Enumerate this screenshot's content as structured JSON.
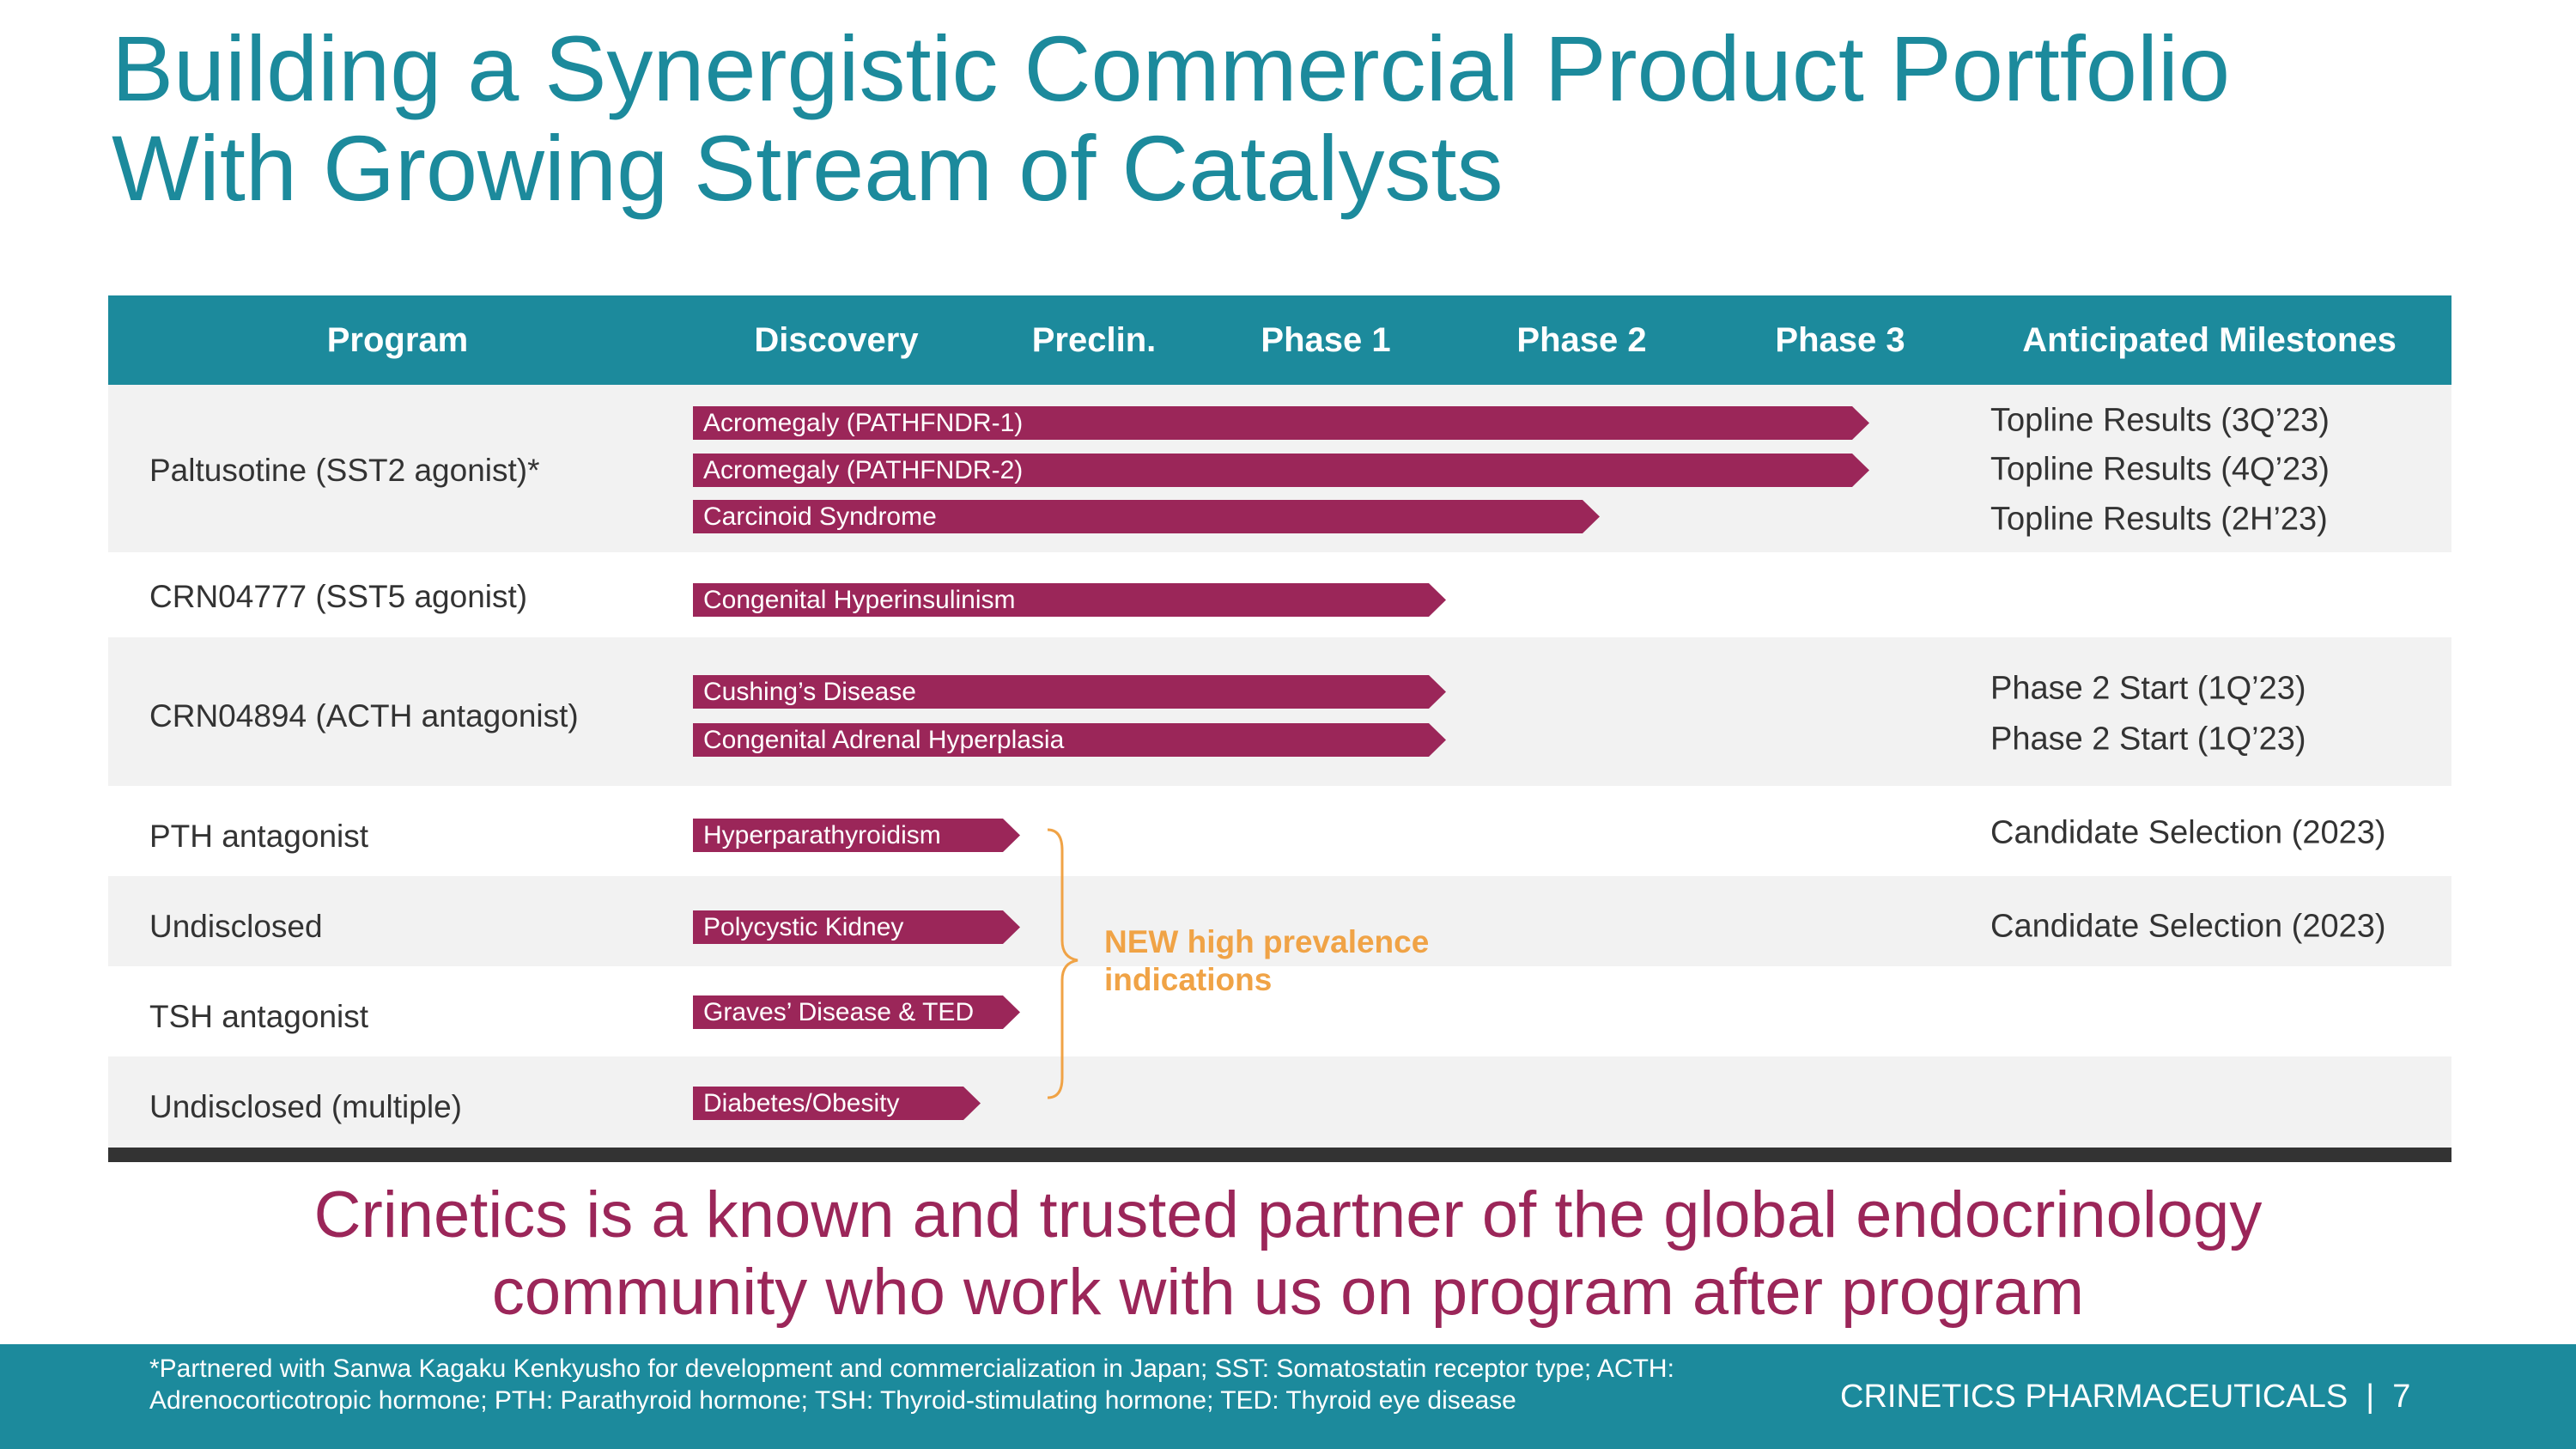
{
  "title": {
    "line1": "Building a Synergistic Commercial Product Portfolio",
    "line2": "With Growing Stream of Catalysts"
  },
  "header": {
    "program": "Program",
    "discovery": "Discovery",
    "preclin": "Preclin.",
    "phase1": "Phase 1",
    "phase2": "Phase 2",
    "phase3": "Phase 3",
    "milestones": "Anticipated Milestones"
  },
  "programs": [
    "Paltusotine (SST2 agonist)*",
    "CRN04777 (SST5 agonist)",
    "CRN04894 (ACTH antagonist)",
    "PTH antagonist",
    "Undisclosed",
    "TSH antagonist",
    "Undisclosed (multiple)"
  ],
  "indications": [
    {
      "label": "Acromegaly (PATHFNDR-1)",
      "stage": "Phase 3"
    },
    {
      "label": "Acromegaly (PATHFNDR-2)",
      "stage": "Phase 3"
    },
    {
      "label": "Carcinoid Syndrome",
      "stage": "Phase 2"
    },
    {
      "label": "Congenital Hyperinsulinism",
      "stage": "Phase 1"
    },
    {
      "label": "Cushing’s Disease",
      "stage": "Phase 1"
    },
    {
      "label": "Congenital Adrenal Hyperplasia",
      "stage": "Phase 1"
    },
    {
      "label": "Hyperparathyroidism",
      "stage": "Discovery"
    },
    {
      "label": "Polycystic Kidney",
      "stage": "Discovery"
    },
    {
      "label": "Graves’ Disease & TED",
      "stage": "Discovery"
    },
    {
      "label": "Diabetes/Obesity",
      "stage": "Discovery"
    }
  ],
  "milestones": [
    "Topline Results (3Q’23)",
    "Topline Results (4Q’23)",
    "Topline Results (2H’23)",
    "Phase 2 Start (1Q’23)",
    "Phase 2 Start (1Q’23)",
    "Candidate Selection (2023)",
    "Candidate Selection (2023)"
  ],
  "new_indications": {
    "line1": "NEW high prevalence",
    "line2": "indications"
  },
  "tagline": {
    "line1": "Crinetics is a known and trusted partner of the global endocrinology",
    "line2": "community who work with us on program after program"
  },
  "footer": {
    "footnote": "*Partnered with Sanwa Kagaku Kenkyusho for development and commercialization in Japan; SST: Somatostatin receptor type; ACTH: Adrenocorticotropic hormone; PTH: Parathyroid hormone;  TSH: Thyroid-stimulating hormone; TED: Thyroid eye disease",
    "brand": "CRINETICS PHARMACEUTICALS  |  7"
  },
  "colors": {
    "teal": "#1c8a9c",
    "magenta": "#9b2659",
    "orange": "#f0a346",
    "dark": "#333333"
  }
}
